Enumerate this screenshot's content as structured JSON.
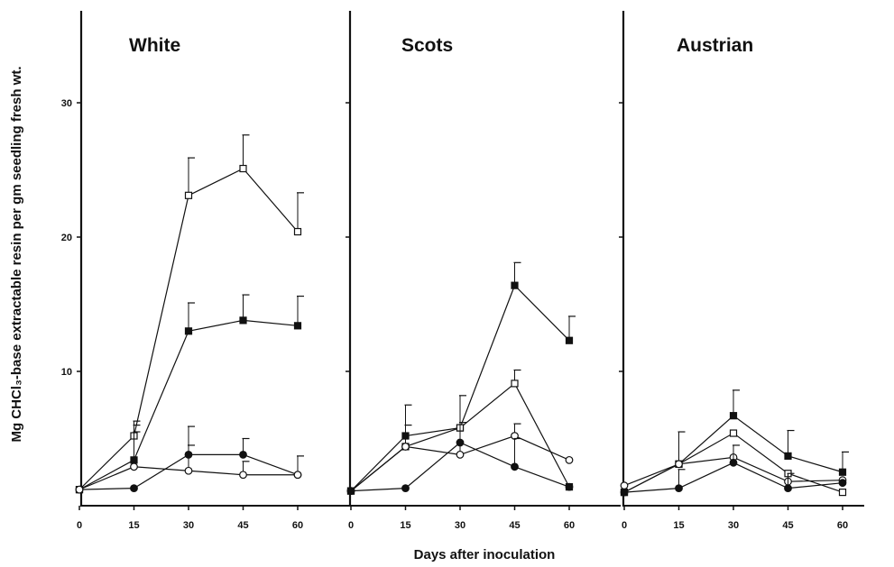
{
  "chart_data": {
    "type": "line",
    "xlabel": "Days after inoculation",
    "ylabel": "Mg CHCl₃-base extractable resin per gm seedling fresh wt.",
    "ylim": [
      0,
      36
    ],
    "yticks": [
      10,
      20,
      30
    ],
    "xticks": [
      0,
      15,
      30,
      45,
      60
    ],
    "xlim": [
      0,
      60
    ],
    "grid": false,
    "legend": "none",
    "colors": {
      "line": "#111111",
      "filled": "#111111",
      "open": "#ffffff"
    },
    "panels": [
      {
        "title": "White",
        "series": [
          {
            "marker": "open-square",
            "x": [
              0,
              15,
              30,
              45,
              60
            ],
            "y": [
              1.2,
              5.2,
              23.1,
              25.1,
              20.4
            ],
            "err": [
              0,
              1.1,
              2.8,
              2.5,
              2.9
            ]
          },
          {
            "marker": "filled-square",
            "x": [
              0,
              15,
              30,
              45,
              60
            ],
            "y": [
              1.2,
              3.4,
              13.0,
              13.8,
              13.4
            ],
            "err": [
              0,
              2.6,
              2.1,
              1.9,
              2.2
            ]
          },
          {
            "marker": "filled-circle",
            "x": [
              0,
              15,
              30,
              45,
              60
            ],
            "y": [
              1.2,
              1.3,
              3.8,
              3.8,
              2.3
            ],
            "err": [
              0,
              0,
              2.1,
              1.2,
              1.4
            ]
          },
          {
            "marker": "open-circle",
            "x": [
              0,
              15,
              30,
              45,
              60
            ],
            "y": [
              1.2,
              2.9,
              2.6,
              2.3,
              2.3
            ],
            "err": [
              0,
              2.6,
              1.9,
              1.0,
              0
            ]
          }
        ]
      },
      {
        "title": "Scots",
        "series": [
          {
            "marker": "filled-square",
            "x": [
              0,
              15,
              30,
              45,
              60
            ],
            "y": [
              1.1,
              5.2,
              5.8,
              16.4,
              12.3
            ],
            "err": [
              0,
              2.3,
              2.4,
              1.7,
              1.8
            ]
          },
          {
            "marker": "open-square",
            "x": [
              0,
              15,
              30,
              45,
              60
            ],
            "y": [
              1.1,
              4.4,
              5.8,
              9.1,
              1.4
            ],
            "err": [
              0,
              0,
              0,
              1.0,
              0
            ]
          },
          {
            "marker": "open-circle",
            "x": [
              0,
              15,
              30,
              45,
              60
            ],
            "y": [
              1.1,
              4.4,
              3.8,
              5.2,
              3.4
            ],
            "err": [
              0,
              1.6,
              2.4,
              0.9,
              0
            ]
          },
          {
            "marker": "filled-circle",
            "x": [
              0,
              15,
              30,
              45,
              60
            ],
            "y": [
              1.1,
              1.3,
              4.7,
              2.9,
              1.4
            ],
            "err": [
              0,
              0,
              0,
              2.1,
              0
            ]
          }
        ]
      },
      {
        "title": "Austrian",
        "series": [
          {
            "marker": "filled-square",
            "x": [
              0,
              15,
              30,
              45,
              60
            ],
            "y": [
              1.0,
              3.1,
              6.7,
              3.7,
              2.5
            ],
            "err": [
              0,
              2.4,
              1.9,
              1.9,
              1.5
            ]
          },
          {
            "marker": "open-square",
            "x": [
              0,
              15,
              30,
              45,
              60
            ],
            "y": [
              1.0,
              3.1,
              5.4,
              2.4,
              1.0
            ],
            "err": [
              0,
              0,
              0,
              0,
              0
            ]
          },
          {
            "marker": "open-circle",
            "x": [
              0,
              15,
              30,
              45,
              60
            ],
            "y": [
              1.5,
              3.1,
              3.6,
              1.8,
              1.9
            ],
            "err": [
              0,
              0,
              0,
              0,
              0
            ]
          },
          {
            "marker": "filled-circle",
            "x": [
              0,
              15,
              30,
              45,
              60
            ],
            "y": [
              1.0,
              1.3,
              3.2,
              1.3,
              1.7
            ],
            "err": [
              0,
              1.4,
              1.3,
              1.1,
              0
            ]
          }
        ]
      }
    ]
  }
}
